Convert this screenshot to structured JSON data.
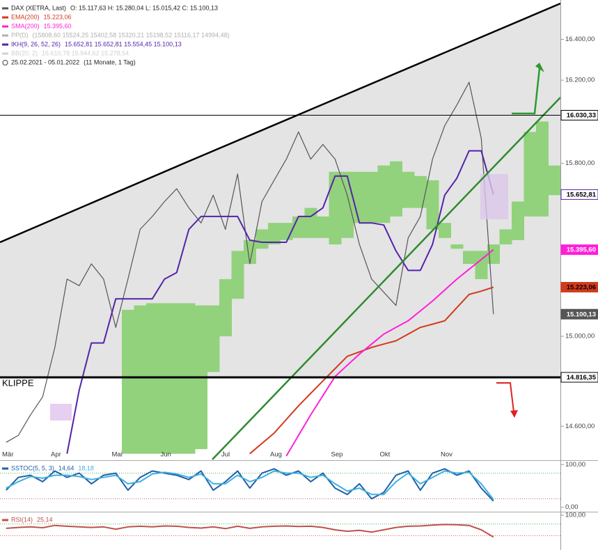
{
  "chart_data": [
    {
      "type": "line",
      "log_scale": true,
      "ylim": [
        14455,
        16595
      ],
      "yticks": [
        {
          "value": 16400,
          "label": "16.400,00"
        },
        {
          "value": 16200,
          "label": "16.200,00"
        },
        {
          "value": 15800,
          "label": "15.800,00"
        },
        {
          "value": 15000,
          "label": "15.000,00"
        },
        {
          "value": 14600,
          "label": "14.600,00"
        }
      ],
      "categories": [
        "Mär",
        null,
        null,
        null,
        "Apr",
        null,
        null,
        null,
        null,
        "Mai",
        null,
        null,
        null,
        "Jun",
        null,
        null,
        null,
        null,
        "Jul",
        null,
        null,
        null,
        "Aug",
        null,
        null,
        null,
        null,
        "Sep",
        null,
        null,
        null,
        "Okt",
        null,
        null,
        null,
        null,
        "Nov",
        null,
        null,
        null,
        null,
        null,
        null,
        null,
        null,
        null
      ],
      "series": [
        {
          "name": "DAX (XETRA, Last)",
          "legend": "O: 15.117,63  H: 15.280,04  L: 15.015,42  C: 15.100,13",
          "color": "#555555",
          "last_label": "15.100,13",
          "values": [
            14530,
            14560,
            14650,
            14730,
            14950,
            15260,
            15230,
            15330,
            15260,
            15040,
            15260,
            15490,
            15550,
            15620,
            15680,
            15590,
            15520,
            15650,
            15490,
            15750,
            15330,
            15620,
            15720,
            15820,
            15950,
            15820,
            15890,
            15820,
            15650,
            15420,
            15260,
            15200,
            15140,
            15450,
            15550,
            15820,
            15980,
            16080,
            16190,
            15920,
            15100.13,
            null,
            null,
            null,
            null,
            null
          ]
        },
        {
          "name": "EMA(200)",
          "legend": "15.223,06",
          "color": "#d23a1e",
          "last_label": "15.223,06",
          "values": [
            null,
            null,
            null,
            null,
            null,
            null,
            null,
            null,
            null,
            null,
            null,
            null,
            null,
            null,
            null,
            null,
            null,
            null,
            null,
            null,
            14480,
            14525,
            14570,
            14630,
            14690,
            14745,
            14800,
            14855,
            14910,
            14930,
            14950,
            14965,
            14980,
            15010,
            15040,
            15055,
            15070,
            15130,
            15190,
            15205,
            15223.06,
            null,
            null,
            null,
            null,
            null
          ]
        },
        {
          "name": "SMA(200)",
          "legend": "15.395,60",
          "color": "#ff1fd8",
          "last_label": "15.395,60",
          "values": [
            null,
            null,
            null,
            null,
            null,
            null,
            null,
            null,
            null,
            null,
            null,
            null,
            null,
            null,
            null,
            null,
            null,
            null,
            null,
            null,
            null,
            null,
            null,
            14470,
            14560,
            14650,
            14735,
            14820,
            14870,
            14920,
            14965,
            15010,
            15040,
            15070,
            15115,
            15160,
            15210,
            15260,
            15305,
            15350,
            15395.6,
            null,
            null,
            null,
            null,
            null
          ]
        },
        {
          "name": "IKH(9, 26, 52, 26)",
          "legend": "15.652,81  15.652,81  15.554,45  15.100,13",
          "color": "#5522aa",
          "last_label": "15.652,81",
          "values": [
            null,
            null,
            null,
            null,
            null,
            14480,
            14760,
            14970,
            14970,
            15170,
            15170,
            15170,
            15170,
            15260,
            15290,
            15490,
            15550,
            15550,
            15550,
            15550,
            15440,
            15430,
            15430,
            15430,
            15550,
            15550,
            15590,
            15740,
            15740,
            15520,
            15520,
            15510,
            15390,
            15300,
            15300,
            15420,
            15650,
            15730,
            15860,
            15860,
            15652.81,
            null,
            null,
            null,
            null,
            null
          ]
        }
      ],
      "cloud": {
        "color": "#92d27c",
        "upper": [
          null,
          null,
          null,
          null,
          null,
          null,
          null,
          null,
          null,
          null,
          15120,
          15140,
          15150,
          15150,
          15150,
          15150,
          15140,
          15140,
          15260,
          15390,
          15440,
          15490,
          15520,
          15520,
          15550,
          15590,
          15550,
          15760,
          15760,
          15760,
          15760,
          15790,
          15810,
          15760,
          15740,
          15720,
          15520,
          15420,
          15390,
          15390,
          15420,
          15490,
          15620,
          15950,
          16000,
          15790
        ],
        "lower": [
          null,
          null,
          null,
          null,
          null,
          null,
          null,
          null,
          null,
          null,
          14480,
          14480,
          14480,
          14480,
          14480,
          14480,
          14500,
          14840,
          15000,
          15170,
          15330,
          15400,
          15420,
          15440,
          15450,
          15450,
          15450,
          15420,
          15450,
          15520,
          15520,
          15520,
          15550,
          15590,
          15590,
          15490,
          15450,
          15400,
          15330,
          15260,
          15330,
          15420,
          15440,
          15550,
          15550,
          15650
        ]
      },
      "extra_legend": [
        {
          "name": "PP(D)",
          "text": "(15808,60  15524,25  15402,58  15320,21  15198,52  15116,17  14994,48)",
          "color": "#b0b0b0"
        },
        {
          "name": "BB(20, 2)",
          "text": "16.610,78  15.944,62  15.278,54",
          "color": "#d0d0d0"
        }
      ],
      "period": "25.02.2021 - 05.01.2022",
      "period_note": "(11 Monate, 1 Tag)",
      "hlines": [
        {
          "value": 16030.33,
          "label": "16.030,33"
        },
        {
          "value": 14816.35,
          "label": "14.816,35",
          "annotation": "KLIPPE"
        }
      ]
    },
    {
      "type": "line",
      "title": "SSTOC(5, 5, 3)",
      "ylim": [
        -7,
        107
      ],
      "yticks": [
        {
          "value": 100,
          "label": "100,00"
        },
        {
          "value": 0,
          "label": "0,00"
        }
      ],
      "levels": [
        {
          "value": 80,
          "color": "#4caf50"
        },
        {
          "value": 20,
          "color": "#e05050"
        }
      ],
      "series": [
        {
          "color": "#1f5fa8",
          "last_label": "14,64",
          "values": [
            40,
            70,
            75,
            60,
            85,
            70,
            80,
            55,
            75,
            80,
            40,
            70,
            85,
            80,
            75,
            65,
            85,
            40,
            60,
            85,
            45,
            80,
            90,
            75,
            85,
            60,
            80,
            45,
            30,
            55,
            20,
            35,
            75,
            85,
            40,
            80,
            90,
            75,
            85,
            45,
            14.64,
            null,
            null,
            null,
            null,
            null
          ]
        },
        {
          "color": "#3fb0e0",
          "last_label": "18,18",
          "values": [
            45,
            60,
            72,
            68,
            75,
            75,
            72,
            65,
            70,
            75,
            55,
            60,
            78,
            82,
            78,
            70,
            78,
            55,
            55,
            75,
            60,
            70,
            85,
            80,
            80,
            70,
            75,
            55,
            38,
            45,
            30,
            30,
            60,
            80,
            55,
            70,
            85,
            80,
            82,
            55,
            18.18,
            null,
            null,
            null,
            null,
            null
          ]
        }
      ]
    },
    {
      "type": "line",
      "title": "RSI(14)",
      "ylim": [
        -19,
        107
      ],
      "yticks": [
        {
          "value": 100,
          "label": "100,00"
        }
      ],
      "levels": [
        {
          "value": 70,
          "color": "#4caf50"
        },
        {
          "value": 30,
          "color": "#e05050"
        }
      ],
      "series": [
        {
          "color": "#c0504d",
          "last_label": "25,14",
          "values": [
            55,
            58,
            60,
            57,
            65,
            62,
            60,
            58,
            60,
            52,
            60,
            62,
            60,
            63,
            62,
            58,
            56,
            60,
            54,
            62,
            55,
            60,
            62,
            63,
            61,
            62,
            58,
            50,
            45,
            48,
            42,
            50,
            58,
            62,
            63,
            66,
            68,
            67,
            65,
            50,
            25.14,
            null,
            null,
            null,
            null,
            null
          ]
        }
      ]
    }
  ]
}
